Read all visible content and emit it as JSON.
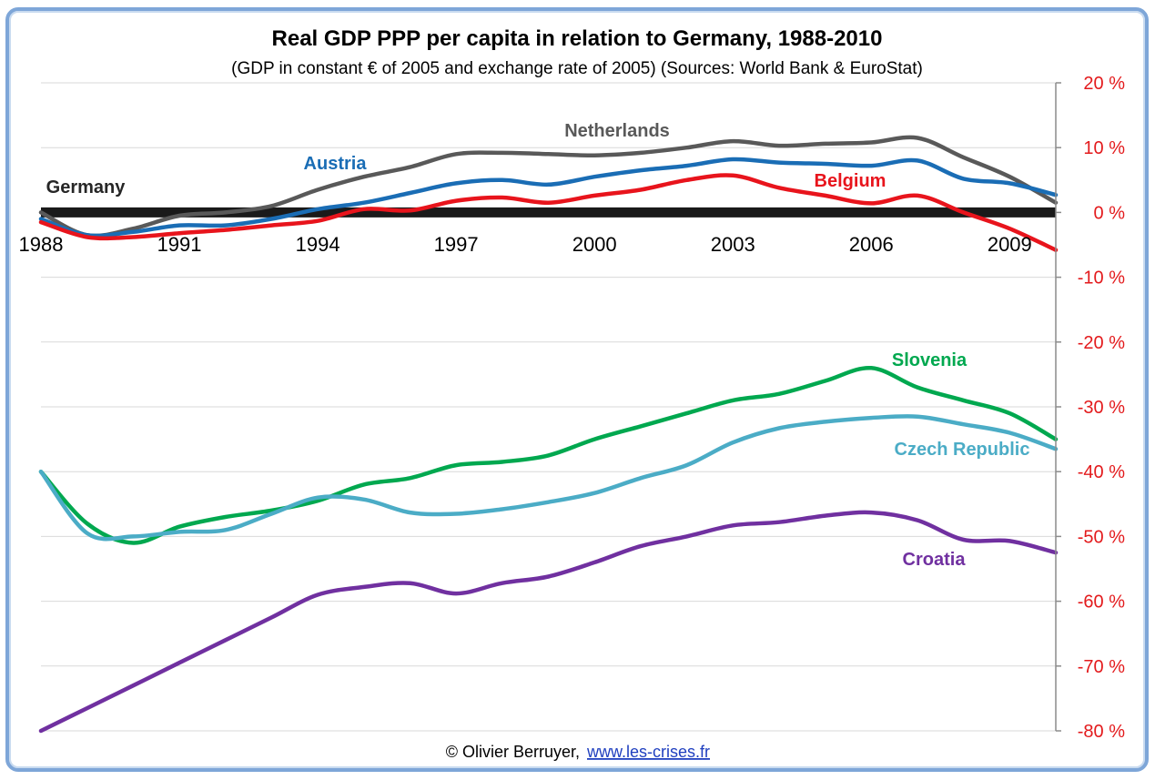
{
  "chart_data": {
    "type": "line",
    "title": "Real GDP PPP per capita in relation to Germany, 1988-2010",
    "subtitle": "(GDP in constant € of 2005 and exchange rate of 2005) (Sources: World Bank & EuroStat)",
    "xlabel": "",
    "ylabel": "",
    "xlim": [
      1988,
      2010
    ],
    "ylim": [
      -80,
      20
    ],
    "x_ticks": [
      "1988",
      "1991",
      "1994",
      "1997",
      "2000",
      "2003",
      "2006",
      "2009"
    ],
    "y_ticks": [
      "20 %",
      "10 %",
      "0 %",
      "-10 %",
      "-20 %",
      "-30 %",
      "-40 %",
      "-50 %",
      "-60 %",
      "-70 %",
      "-80 %"
    ],
    "grid": true,
    "y_axis_side": "right",
    "x": [
      1988,
      1989,
      1990,
      1991,
      1992,
      1993,
      1994,
      1995,
      1996,
      1997,
      1998,
      1999,
      2000,
      2001,
      2002,
      2003,
      2004,
      2005,
      2006,
      2007,
      2008,
      2009,
      2010
    ],
    "series": [
      {
        "name": "Germany",
        "color": "#1a1a1a",
        "values": [
          0,
          0,
          0,
          0,
          0,
          0,
          0,
          0,
          0,
          0,
          0,
          0,
          0,
          0,
          0,
          0,
          0,
          0,
          0,
          0,
          0,
          0,
          0
        ]
      },
      {
        "name": "Netherlands",
        "color": "#595959",
        "values": [
          0,
          -3.5,
          -2.5,
          -0.5,
          0,
          1,
          3.5,
          5.5,
          7,
          9,
          9.2,
          9,
          8.8,
          9.2,
          10,
          11,
          10.3,
          10.6,
          10.8,
          11.5,
          8.5,
          5.5,
          1.5
        ]
      },
      {
        "name": "Austria",
        "color": "#1a6db5",
        "values": [
          -1,
          -3.5,
          -3,
          -2,
          -2,
          -1,
          0.5,
          1.5,
          3,
          4.5,
          5,
          4.3,
          5.5,
          6.5,
          7.2,
          8.2,
          7.7,
          7.5,
          7.2,
          8,
          5.2,
          4.5,
          2.7
        ]
      },
      {
        "name": "Belgium",
        "color": "#e8141c",
        "values": [
          -1.5,
          -3.8,
          -3.8,
          -3.2,
          -2.7,
          -2,
          -1.3,
          0.5,
          0.3,
          1.8,
          2.3,
          1.5,
          2.6,
          3.5,
          5,
          5.7,
          3.8,
          2.6,
          1.4,
          2.6,
          0,
          -2.5,
          -5.8
        ]
      },
      {
        "name": "Slovenia",
        "color": "#00a84f",
        "values": [
          -40,
          -48,
          -51,
          -48.5,
          -47,
          -46,
          -44.5,
          -42,
          -41,
          -39,
          -38.5,
          -37.5,
          -35,
          -33,
          -31,
          -29,
          -28,
          -26,
          -24,
          -27,
          -29,
          -31,
          -35
        ]
      },
      {
        "name": "Czech Republic",
        "color": "#4bacc6",
        "values": [
          -40,
          -49.5,
          -50,
          -49.3,
          -49,
          -46.5,
          -44,
          -44.3,
          -46.3,
          -46.5,
          -45.8,
          -44.7,
          -43.3,
          -41,
          -39,
          -35.5,
          -33.3,
          -32.3,
          -31.7,
          -31.5,
          -32.7,
          -34,
          -36.5
        ]
      },
      {
        "name": "Croatia",
        "color": "#7030a0",
        "values": [
          -80,
          -76.5,
          -73,
          -69.5,
          -66,
          -62.5,
          -59,
          -57.8,
          -57.2,
          -58.8,
          -57.2,
          -56.2,
          -54,
          -51.5,
          -50,
          -48.3,
          -47.8,
          -46.8,
          -46.3,
          -47.5,
          -50.5,
          -50.7,
          -52.5
        ]
      }
    ]
  },
  "credit": {
    "author": "© Olivier Berruyer,",
    "link": "www.les-crises.fr"
  }
}
